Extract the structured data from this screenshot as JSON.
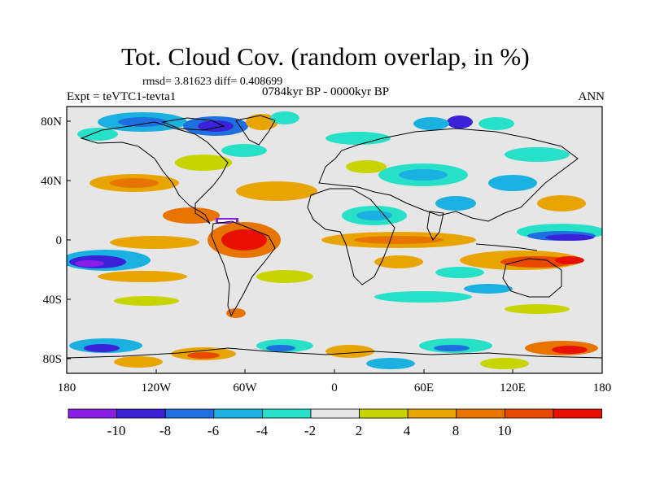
{
  "title": "Tot. Cloud Cov. (random overlap, in %)",
  "stats": "rmsd= 3.81623 diff= 0.408699",
  "experiment": "Expt = teVTC1-tevta1",
  "period": "0784kyr BP - 0000kyr BP",
  "season": "ANN",
  "axes": {
    "x_ticks": [
      "180",
      "120W",
      "60W",
      "0",
      "60E",
      "120E",
      "180"
    ],
    "y_ticks": [
      "80N",
      "40N",
      "0",
      "40S",
      "80S"
    ]
  },
  "colorbar": {
    "labels": [
      "-10",
      "-8",
      "-6",
      "-4",
      "-2",
      "2",
      "4",
      "8",
      "10"
    ],
    "colors": [
      "#8a1ee6",
      "#3b22d9",
      "#1f6fe0",
      "#1ab0e0",
      "#26e0c8",
      "#e6e6e6",
      "#c8d400",
      "#e8a400",
      "#e87400",
      "#e84800",
      "#e81000"
    ]
  },
  "map": {
    "background_color": "#e6e6e6",
    "coast_color": "#000000"
  }
}
